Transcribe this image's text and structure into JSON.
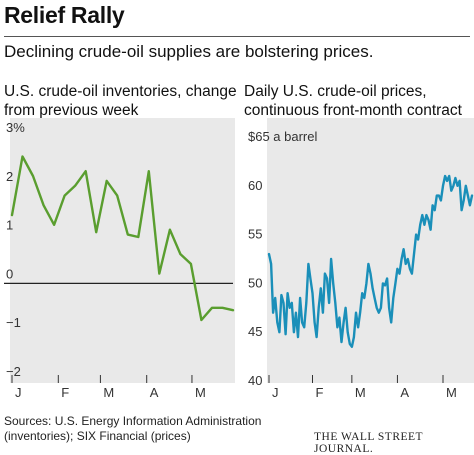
{
  "header": {
    "title": "Relief Rally",
    "subtitle": "Declining crude-oil supplies are bolstering prices."
  },
  "left_panel": {
    "title_line1": "U.S. crude-oil inventories, change",
    "title_line2": "from previous week"
  },
  "right_panel": {
    "title_line1": "Daily U.S. crude-oil prices,",
    "title_line2": "continuous front-month contract"
  },
  "footer": {
    "source_line1": "Sources: U.S. Energy Information Administration",
    "source_line2": "(inventories); SIX Financial (prices)",
    "credit": "THE WALL STREET JOURNAL."
  },
  "colors": {
    "left_line": "#5a9e2f",
    "right_line": "#1a8fb9",
    "plot_bg": "#e9e9e9",
    "zero_line": "#222222"
  },
  "chart_data": [
    {
      "type": "line",
      "title": "U.S. crude-oil inventories, change from previous week",
      "ylabel": "",
      "ylim": [
        -2,
        3
      ],
      "y_ticks": [
        3,
        2,
        1,
        0,
        -1,
        -2
      ],
      "y_tick_labels": [
        "3%",
        "2",
        "1",
        "0",
        "−1",
        "−2"
      ],
      "x_months": [
        "J",
        "F",
        "M",
        "A",
        "M"
      ],
      "x_month_positions": [
        0,
        4.4,
        8.4,
        12.8,
        17.1
      ],
      "xlim": [
        0,
        21
      ],
      "grid": false,
      "series": [
        {
          "x": [
            0,
            1,
            2,
            3,
            4,
            5,
            6,
            7,
            8,
            9,
            10,
            11,
            12,
            13,
            14,
            15,
            16,
            17,
            18,
            19,
            20,
            21
          ],
          "values": [
            1.4,
            2.6,
            2.2,
            1.6,
            1.2,
            1.8,
            2.0,
            2.3,
            1.05,
            2.1,
            1.8,
            1.0,
            0.95,
            2.3,
            0.2,
            1.1,
            0.6,
            0.4,
            -0.75,
            -0.5,
            -0.5,
            -0.55
          ]
        }
      ]
    },
    {
      "type": "line",
      "title": "Daily U.S. crude-oil prices, continuous front-month contract",
      "ylabel": "",
      "ylim": [
        40,
        65
      ],
      "y_ticks": [
        65,
        60,
        55,
        50,
        45,
        40
      ],
      "y_tick_labels": [
        "$65 a barrel",
        "60",
        "55",
        "50",
        "45",
        "40"
      ],
      "x_months": [
        "J",
        "F",
        "M",
        "A",
        "M"
      ],
      "x_month_positions": [
        0,
        21,
        40,
        62,
        84
      ],
      "xlim": [
        0,
        98
      ],
      "grid": false,
      "series": [
        {
          "x": [
            0,
            1,
            2,
            3,
            4,
            5,
            6,
            7,
            8,
            9,
            10,
            11,
            12,
            13,
            14,
            15,
            16,
            17,
            18,
            19,
            20,
            21,
            22,
            23,
            24,
            25,
            26,
            27,
            28,
            29,
            30,
            31,
            32,
            33,
            34,
            35,
            36,
            37,
            38,
            39,
            40,
            41,
            42,
            43,
            44,
            45,
            46,
            47,
            48,
            49,
            50,
            51,
            52,
            53,
            54,
            55,
            56,
            57,
            58,
            59,
            60,
            61,
            62,
            63,
            64,
            65,
            66,
            67,
            68,
            69,
            70,
            71,
            72,
            73,
            74,
            75,
            76,
            77,
            78,
            79,
            80,
            81,
            82,
            83,
            84,
            85,
            86,
            87,
            88,
            89,
            90,
            91,
            92,
            93,
            94,
            95,
            96,
            97,
            98
          ],
          "values": [
            53.0,
            52.0,
            47.0,
            48.5,
            46.0,
            45.0,
            48.8,
            48.0,
            44.8,
            49.0,
            47.5,
            48.0,
            45.0,
            47.0,
            44.5,
            48.5,
            46.0,
            45.5,
            48.0,
            52.0,
            50.5,
            49.0,
            46.0,
            44.5,
            47.5,
            49.5,
            47.0,
            51.0,
            50.5,
            48.0,
            52.5,
            50.0,
            48.0,
            45.5,
            46.5,
            44.0,
            46.0,
            47.5,
            45.0,
            43.8,
            43.5,
            44.5,
            47.0,
            45.5,
            47.0,
            49.0,
            48.5,
            50.0,
            52.0,
            51.0,
            49.5,
            48.5,
            47.5,
            47.0,
            47.5,
            50.0,
            49.8,
            50.5,
            47.5,
            46.0,
            48.5,
            50.0,
            51.5,
            51.0,
            52.5,
            53.5,
            52.0,
            52.5,
            51.5,
            51.0,
            53.0,
            55.0,
            54.5,
            56.0,
            57.0,
            56.0,
            57.0,
            56.5,
            55.5,
            58.0,
            57.5,
            59.0,
            59.0,
            58.5,
            60.0,
            61.0,
            60.5,
            61.0,
            59.5,
            60.0,
            60.8,
            60.0,
            60.5,
            57.5,
            58.5,
            60.0,
            59.0,
            58.0,
            59.0
          ]
        }
      ]
    }
  ]
}
